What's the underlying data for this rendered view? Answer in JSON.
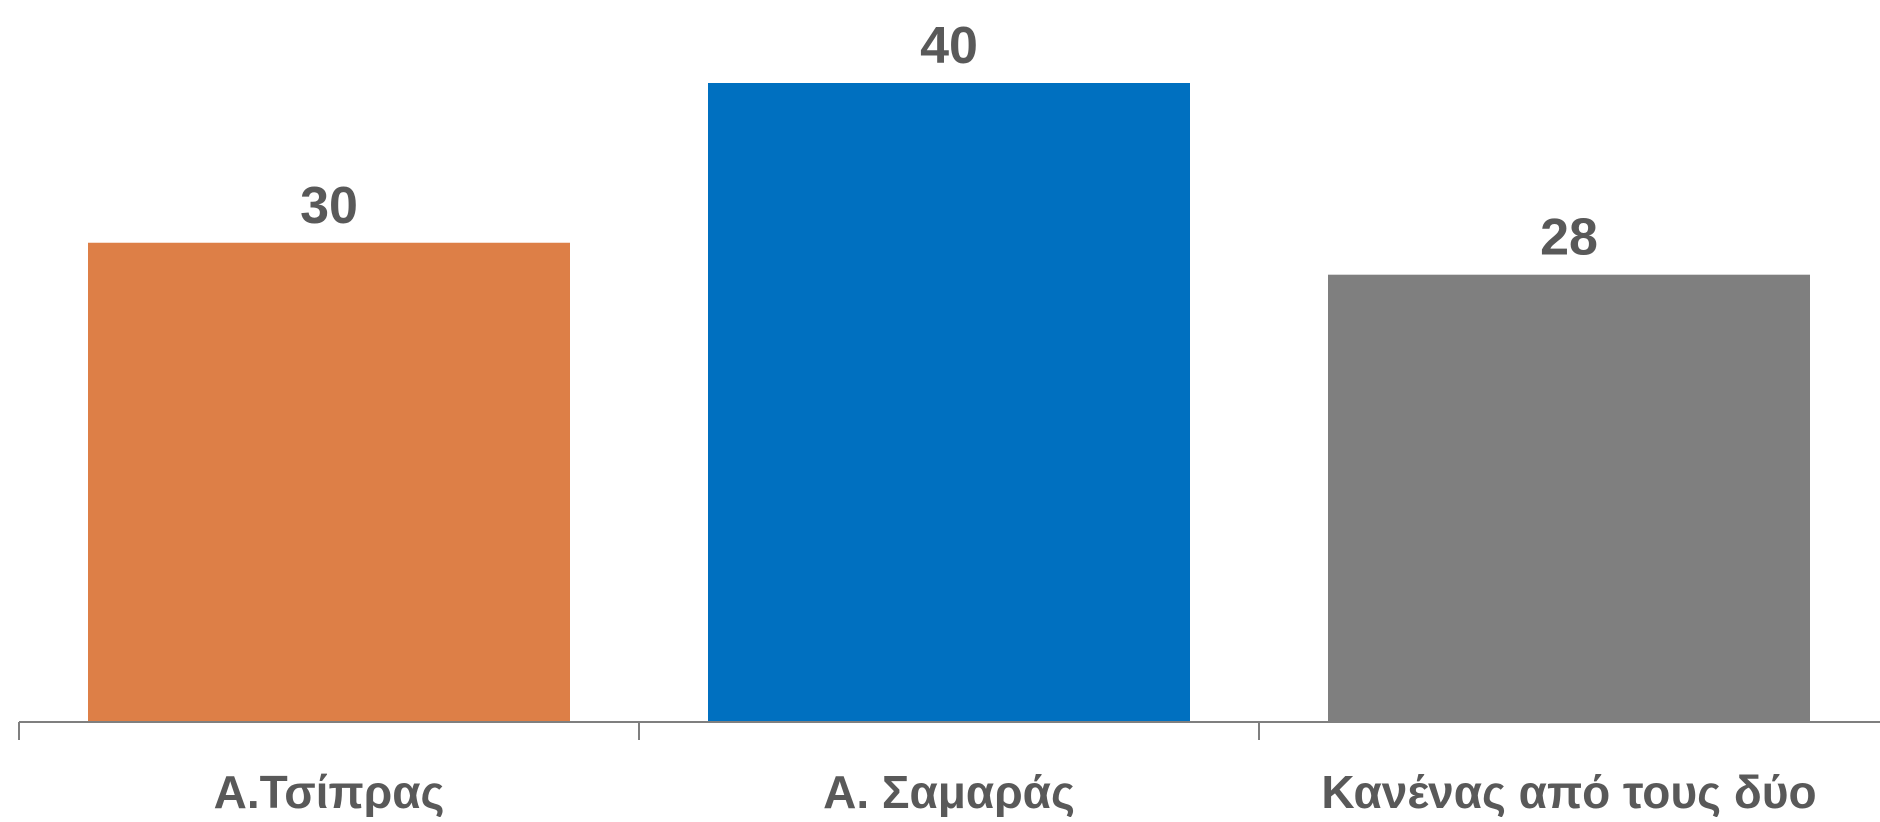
{
  "chart_data": {
    "type": "bar",
    "categories": [
      "Α.Τσίπρας",
      "Α. Σαμαράς",
      "Κανένας από τους δύο"
    ],
    "values": [
      30,
      40,
      28
    ],
    "data_labels": [
      "30",
      "40",
      "28"
    ],
    "colors": [
      "#DD7F47",
      "#0070C0",
      "#7F7F7F"
    ],
    "label_color": "#595959",
    "axis_color": "#7F7F7F",
    "title": "",
    "xlabel": "",
    "ylabel": "",
    "ylim": [
      0,
      40
    ],
    "grid": false,
    "legend": "none"
  }
}
